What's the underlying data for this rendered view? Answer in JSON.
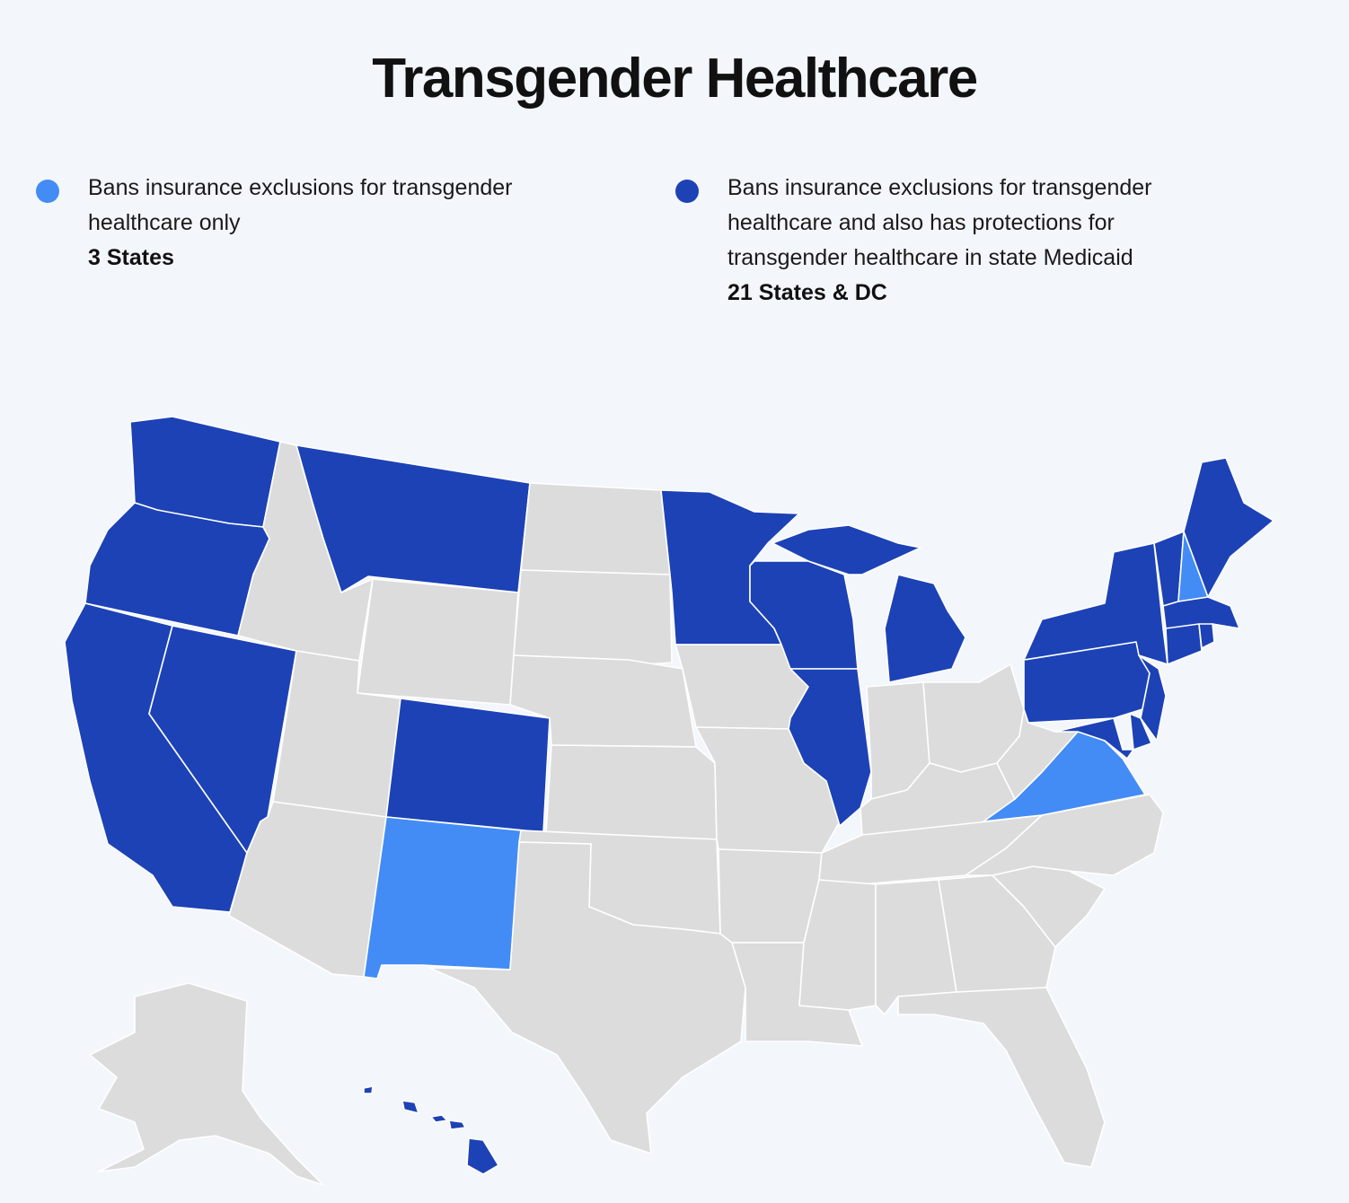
{
  "title": "Transgender Healthcare",
  "colors": {
    "background": "#f3f6fb",
    "insurance_only": "#438cf6",
    "insurance_and_medicaid": "#1c42b6",
    "no_protection": "#dcdcdc",
    "border": "#ffffff"
  },
  "legend": [
    {
      "key": "insurance_only",
      "text": "Bans insurance exclusions for transgender healthcare only",
      "count": "3 States"
    },
    {
      "key": "insurance_and_medicaid",
      "text": "Bans insurance exclusions for transgender healthcare and also has protections for transgender healthcare in state Medicaid",
      "count": "21 States & DC"
    }
  ],
  "states": {
    "insurance_and_medicaid": [
      "WA",
      "OR",
      "CA",
      "NV",
      "MT",
      "CO",
      "MN",
      "WI",
      "IL",
      "MI",
      "NY",
      "PA",
      "NJ",
      "DE",
      "MD",
      "CT",
      "RI",
      "MA",
      "VT",
      "ME",
      "HI",
      "DC"
    ],
    "insurance_only": [
      "NM",
      "VA",
      "NH"
    ],
    "no_protection": [
      "ID",
      "WY",
      "UT",
      "AZ",
      "ND",
      "SD",
      "NE",
      "KS",
      "OK",
      "TX",
      "IA",
      "MO",
      "AR",
      "LA",
      "MS",
      "AL",
      "GA",
      "FL",
      "SC",
      "NC",
      "TN",
      "KY",
      "IN",
      "OH",
      "WV",
      "AK"
    ]
  }
}
